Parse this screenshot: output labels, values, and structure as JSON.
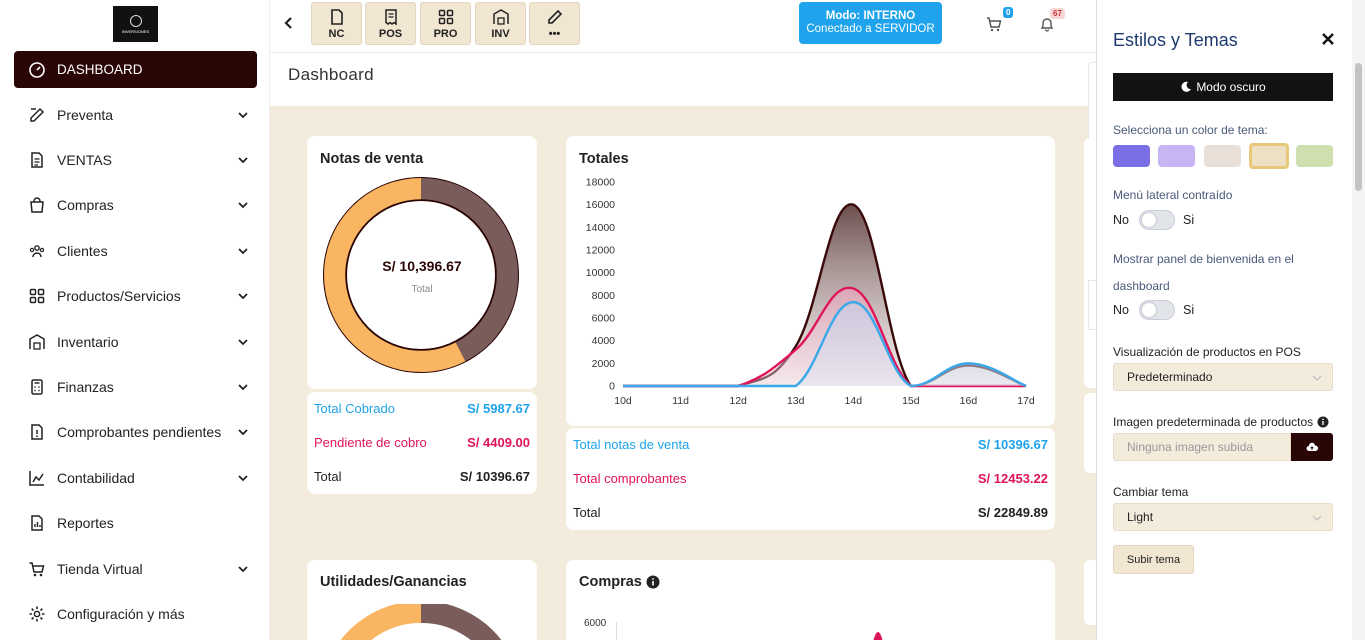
{
  "logo": {
    "text": "INVERSIONES"
  },
  "sidebar": {
    "items": [
      {
        "label": "DASHBOARD",
        "icon": "dashboard-icon",
        "active": true,
        "chevron": false
      },
      {
        "label": "Preventa",
        "icon": "edit-icon",
        "chevron": true
      },
      {
        "label": "VENTAS",
        "icon": "document-icon",
        "chevron": true
      },
      {
        "label": "Compras",
        "icon": "shopping-bag-icon",
        "chevron": true
      },
      {
        "label": "Clientes",
        "icon": "users-icon",
        "chevron": true
      },
      {
        "label": "Productos/Servicios",
        "icon": "grid-icon",
        "chevron": true
      },
      {
        "label": "Inventario",
        "icon": "warehouse-icon",
        "chevron": true
      },
      {
        "label": "Finanzas",
        "icon": "calculator-icon",
        "chevron": true
      },
      {
        "label": "Comprobantes pendientes",
        "icon": "pending-document-icon",
        "chevron": true
      },
      {
        "label": "Contabilidad",
        "icon": "chart-icon",
        "chevron": true
      },
      {
        "label": "Reportes",
        "icon": "report-icon",
        "chevron": false
      },
      {
        "label": "Tienda Virtual",
        "icon": "cart-icon",
        "chevron": true
      },
      {
        "label": "Configuración y más",
        "icon": "gear-icon",
        "chevron": false
      }
    ]
  },
  "toolbar": {
    "buttons": [
      {
        "label": "NC",
        "icon": "file-icon"
      },
      {
        "label": "POS",
        "icon": "receipt-icon"
      },
      {
        "label": "PRO",
        "icon": "grid-icon"
      },
      {
        "label": "INV",
        "icon": "warehouse-icon"
      },
      {
        "label": "•••",
        "icon": "pencil-icon"
      }
    ],
    "mode_title": "Modo: INTERNO",
    "mode_subtitle": "Conectado a SERVIDOR",
    "cart_badge": "0",
    "bell_badge": "67"
  },
  "page": {
    "title": "Dashboard"
  },
  "notas": {
    "title": "Notas de venta",
    "center_value": "S/ 10,396.67",
    "center_label": "Total",
    "cobrado_fraction": 0.5758,
    "pendiente_fraction": 0.4242,
    "rows": [
      {
        "label": "Total Cobrado",
        "value": "S/ 5987.67",
        "color": "#1fa3ec"
      },
      {
        "label": "Pendiente de cobro",
        "value": "S/ 4409.00",
        "color": "#e0145a"
      },
      {
        "label": "Total",
        "value": "S/ 10396.67",
        "color": "#222222"
      }
    ]
  },
  "totales": {
    "title": "Totales",
    "rows": [
      {
        "label": "Total notas de venta",
        "value": "S/ 10396.67",
        "color": "#1fa3ec"
      },
      {
        "label": "Total comprobantes",
        "value": "S/ 12453.22",
        "color": "#e0145a"
      },
      {
        "label": "Total",
        "value": "S/ 22849.89",
        "color": "#222222"
      }
    ]
  },
  "utilidades": {
    "title": "Utilidades/Ganancias"
  },
  "compras": {
    "title": "Compras",
    "y_top_label": "6000"
  },
  "chart_data": {
    "type": "area",
    "categories": [
      "10d",
      "11d",
      "12d",
      "13d",
      "14d",
      "15d",
      "16d",
      "17d"
    ],
    "ylim": [
      0,
      18000
    ],
    "yticks": [
      "0",
      "2000",
      "4000",
      "6000",
      "8000",
      "10000",
      "12000",
      "14000",
      "16000",
      "18000"
    ],
    "series": [
      {
        "values": [
          0,
          0,
          0,
          3500,
          16000,
          0,
          1800,
          0
        ],
        "color": "#3a0a0a"
      },
      {
        "values": [
          0,
          0,
          0,
          3200,
          8600,
          0,
          0,
          0
        ],
        "color": "#e0145a"
      },
      {
        "values": [
          0,
          0,
          0,
          0,
          7400,
          0,
          2000,
          0
        ],
        "color": "#3ba8ea"
      }
    ]
  },
  "panel": {
    "title": "Estilos y Temas",
    "dark_mode_label": "Modo oscuro",
    "color_label": "Selecciona un color de tema:",
    "swatches": [
      "#7b6fe8",
      "#c6b5f2",
      "#eadfd6",
      "#eee0c2",
      "#cfe0ae"
    ],
    "menu_label": "Menú lateral contraído",
    "welcome_label_1": "Mostrar panel de bienvenida en el",
    "welcome_label_2": "dashboard",
    "no": "No",
    "si": "Si",
    "pos_label": "Visualización de productos en POS",
    "pos_value": "Predeterminado",
    "image_label": "Imagen predeterminada de productos",
    "image_placeholder": "Ninguna imagen subida",
    "theme_label": "Cambiar tema",
    "theme_value": "Light",
    "submit_label": "Subir tema"
  }
}
